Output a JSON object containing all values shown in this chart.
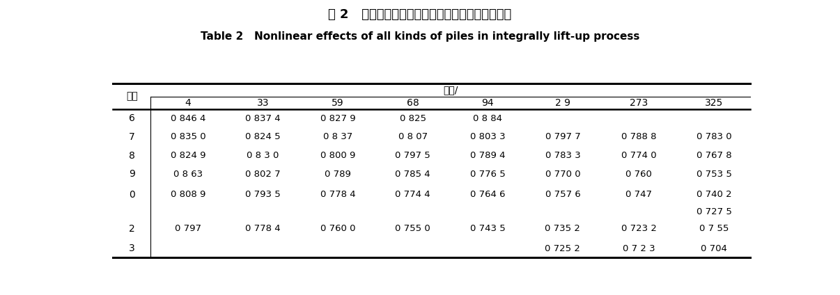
{
  "title_cn": "表 2   整体顶升过程中各种规格桩的非线性影响因子",
  "title_en": "Table 2   Nonlinear effects of all kinds of piles in integrally lift-up process",
  "col_header_group": "直径/",
  "row_header": "壁厚",
  "col_headers": [
    "4",
    "33",
    "59",
    "68",
    "94",
    "2 9",
    "273",
    "325"
  ],
  "rows": [
    {
      "label": "6",
      "vals": [
        "0 846 4",
        "0 837 4",
        "0 827 9",
        "0 825",
        "0 8 84",
        "",
        "",
        ""
      ]
    },
    {
      "label": "7",
      "vals": [
        "0 835 0",
        "0 824 5",
        "0 8 37",
        "0 8 07",
        "0 803 3",
        "0 797 7",
        "0 788 8",
        "0 783 0"
      ]
    },
    {
      "label": "8",
      "vals": [
        "0 824 9",
        "0 8 3 0",
        "0 800 9",
        "0 797 5",
        "0 789 4",
        "0 783 3",
        "0 774 0",
        "0 767 8"
      ]
    },
    {
      "label": "9",
      "vals": [
        "0 8 63",
        "0 802 7",
        "0 789",
        "0 785 4",
        "0 776 5",
        "0 770 0",
        "0 760",
        "0 753 5"
      ]
    },
    {
      "label": "0",
      "vals": [
        "0 808 9",
        "0 793 5",
        "0 778 4",
        "0 774 4",
        "0 764 6",
        "0 757 6",
        "0 747",
        "0 740 2"
      ]
    },
    {
      "label": "",
      "vals": [
        "",
        "",
        "",
        "",
        "",
        "",
        "",
        "0 727 5"
      ]
    },
    {
      "label": "2",
      "vals": [
        "0 797",
        "0 778 4",
        "0 760 0",
        "0 755 0",
        "0 743 5",
        "0 735 2",
        "0 723 2",
        "0 7 55"
      ]
    },
    {
      "label": "3",
      "vals": [
        "",
        "",
        "",
        "",
        "",
        "0 725 2",
        "0 7 2 3",
        "0 704"
      ]
    }
  ],
  "bg_color": "#ffffff",
  "text_color": "#000000",
  "line_color": "#000000",
  "title_cn_fontsize": 13,
  "title_en_fontsize": 11,
  "header_fontsize": 10,
  "cell_fontsize": 9.5
}
